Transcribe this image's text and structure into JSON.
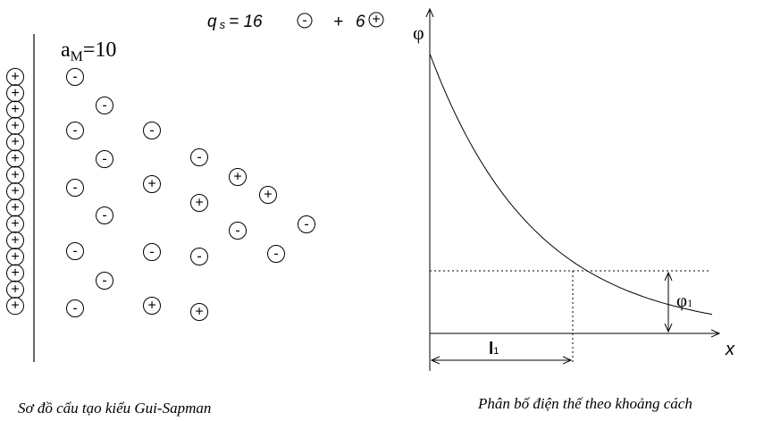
{
  "left_panel": {
    "activity": {
      "a": "a",
      "sub": "M",
      "rest": "=10"
    },
    "formula": {
      "q": "q",
      "sub": "s",
      "equals": "= 16",
      "minus": "-",
      "plus_op": "+",
      "six": "6",
      "plus": "+"
    },
    "wall_ions": [
      "+",
      "+",
      "+",
      "+",
      "+",
      "+",
      "+",
      "+",
      "+",
      "+",
      "+",
      "+",
      "+",
      "+",
      "+"
    ],
    "solution_ions": [
      "-",
      "-",
      "-",
      "-",
      "-",
      "-",
      "+",
      "-",
      "+",
      "+",
      "+",
      "-",
      "-",
      "-",
      "-",
      "-",
      "-",
      "-",
      "-",
      "-",
      "+",
      "+"
    ],
    "caption": "Sơ đồ cấu tạo kiểu Gui-Sapman"
  },
  "right_panel": {
    "y_axis_label": "φ",
    "x_axis_label": "x",
    "phi1": {
      "symbol": "φ",
      "sub": "1"
    },
    "l1": {
      "symbol": "l",
      "sub": "1"
    },
    "caption": "Phân bố điện thế theo khoảng cách"
  }
}
